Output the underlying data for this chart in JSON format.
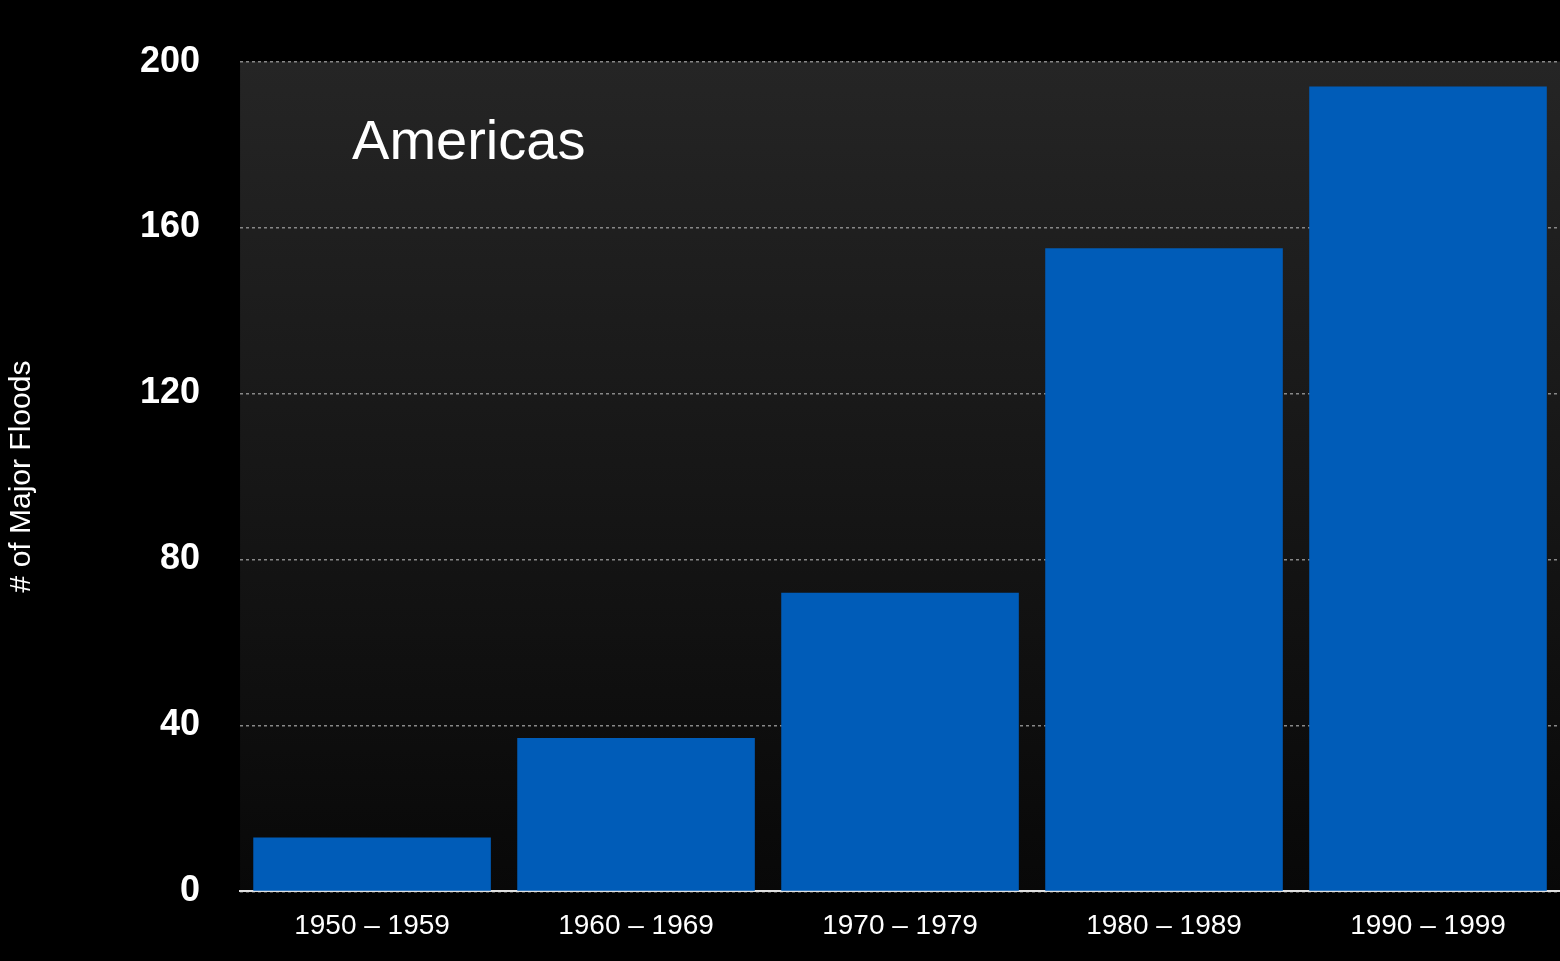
{
  "chart_data": {
    "type": "bar",
    "title": "Americas",
    "ylabel": "# of Major Floods",
    "categories": [
      "1950 – 1959",
      "1960 – 1969",
      "1970 – 1979",
      "1980 – 1989",
      "1990 – 1999"
    ],
    "values": [
      13,
      37,
      72,
      155,
      194
    ],
    "color": "#005cb8",
    "ylim": [
      0,
      200
    ],
    "yticks": [
      0,
      40,
      80,
      120,
      160,
      200
    ],
    "grid": "y",
    "legend": false
  }
}
